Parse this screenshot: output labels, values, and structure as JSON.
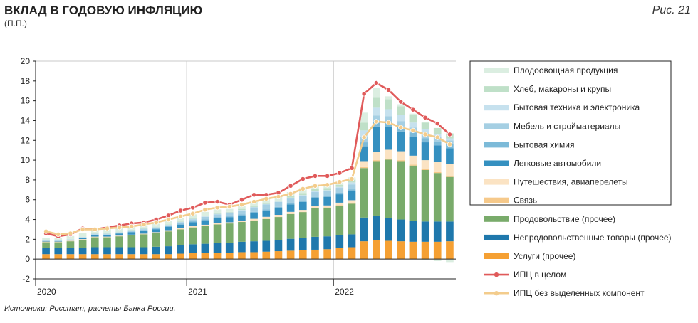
{
  "header": {
    "title": "ВКЛАД В ГОДОВУЮ ИНФЛЯЦИЮ",
    "units": "(П.П.)",
    "figure": "Рис. 21"
  },
  "source": "Источники: Росстат, расчеты Банка России.",
  "chart_data": {
    "type": "bar",
    "stacked": true,
    "ylim": [
      -2,
      20
    ],
    "yticks": [
      -2,
      0,
      2,
      4,
      6,
      8,
      10,
      12,
      14,
      16,
      18,
      20
    ],
    "xtick_labels": [
      "2020",
      "2021",
      "2022"
    ],
    "xtick_positions": [
      0,
      12,
      24
    ],
    "grid": "vertical at year boundaries",
    "legend_position": "right",
    "n_months": 34,
    "series": [
      {
        "name": "Услуги (прочее)",
        "color": "#f5a033",
        "values": [
          0.5,
          0.5,
          0.5,
          0.5,
          0.5,
          0.5,
          0.5,
          0.5,
          0.5,
          0.5,
          0.5,
          0.55,
          0.6,
          0.6,
          0.6,
          0.6,
          0.7,
          0.7,
          0.75,
          0.8,
          0.85,
          0.9,
          0.95,
          1.0,
          1.1,
          1.2,
          1.8,
          1.9,
          1.85,
          1.8,
          1.75,
          1.75,
          1.75,
          1.8
        ]
      },
      {
        "name": "Непродовольственные товары (прочее)",
        "color": "#1f78ac",
        "values": [
          0.6,
          0.6,
          0.6,
          0.65,
          0.7,
          0.7,
          0.7,
          0.7,
          0.7,
          0.75,
          0.8,
          0.85,
          0.9,
          0.95,
          1.0,
          1.0,
          1.05,
          1.1,
          1.1,
          1.15,
          1.2,
          1.25,
          1.3,
          1.3,
          1.3,
          1.3,
          2.4,
          2.5,
          2.3,
          2.2,
          2.1,
          2.05,
          2.05,
          2.0
        ]
      },
      {
        "name": "Продовольствие (прочее)",
        "color": "#79ab6b",
        "values": [
          0.6,
          0.6,
          0.7,
          0.8,
          1.0,
          1.0,
          1.1,
          1.2,
          1.3,
          1.4,
          1.5,
          1.6,
          1.7,
          1.8,
          1.9,
          2.0,
          2.0,
          2.1,
          2.2,
          2.3,
          2.5,
          2.6,
          2.9,
          2.9,
          3.0,
          3.1,
          5.0,
          5.5,
          5.9,
          5.9,
          5.6,
          5.2,
          4.9,
          4.5
        ]
      },
      {
        "name": "Связь",
        "color": "#f6c98a",
        "values": [
          0.02,
          0.02,
          0.02,
          0.02,
          0.02,
          0.02,
          0.02,
          0.02,
          0.02,
          0.02,
          0.02,
          0.02,
          0.02,
          0.02,
          0.02,
          0.02,
          0.02,
          0.02,
          0.02,
          0.02,
          0.02,
          0.02,
          0.02,
          0.02,
          0.05,
          0.05,
          0.1,
          0.1,
          0.1,
          0.1,
          0.1,
          0.1,
          0.1,
          0.1
        ]
      },
      {
        "name": "Путешествия, авиаперелеты",
        "color": "#fbe3c3",
        "values": [
          0.05,
          0.05,
          0.05,
          0.05,
          0.05,
          0.05,
          0.05,
          0.05,
          0.05,
          0.05,
          0.1,
          0.1,
          0.1,
          0.1,
          0.1,
          0.1,
          0.1,
          0.15,
          0.2,
          0.2,
          0.2,
          0.2,
          0.2,
          0.2,
          0.25,
          0.3,
          0.6,
          0.8,
          0.9,
          0.9,
          0.9,
          0.9,
          1.0,
          1.2
        ]
      },
      {
        "name": "Легковые автомобили",
        "color": "#3590c0",
        "values": [
          0.05,
          0.05,
          0.05,
          0.1,
          0.15,
          0.15,
          0.2,
          0.25,
          0.3,
          0.3,
          0.35,
          0.35,
          0.4,
          0.45,
          0.5,
          0.5,
          0.55,
          0.6,
          0.65,
          0.7,
          0.75,
          0.8,
          0.8,
          0.85,
          0.85,
          0.9,
          1.5,
          2.6,
          2.3,
          2.0,
          1.9,
          1.8,
          1.7,
          1.6
        ]
      },
      {
        "name": "Бытовая химия",
        "color": "#7cbad8",
        "values": [
          0.02,
          0.02,
          0.02,
          0.02,
          0.05,
          0.05,
          0.05,
          0.05,
          0.05,
          0.05,
          0.05,
          0.1,
          0.1,
          0.1,
          0.1,
          0.1,
          0.1,
          0.1,
          0.1,
          0.1,
          0.1,
          0.1,
          0.1,
          0.1,
          0.15,
          0.2,
          0.4,
          0.5,
          0.5,
          0.5,
          0.45,
          0.4,
          0.4,
          0.4
        ]
      },
      {
        "name": "Мебель и стройматериалы",
        "color": "#a5cfe3",
        "values": [
          0.02,
          0.02,
          0.02,
          0.05,
          0.05,
          0.05,
          0.05,
          0.1,
          0.1,
          0.1,
          0.1,
          0.15,
          0.2,
          0.25,
          0.3,
          0.35,
          0.4,
          0.45,
          0.5,
          0.5,
          0.5,
          0.5,
          0.5,
          0.5,
          0.5,
          0.5,
          0.6,
          0.6,
          0.6,
          0.55,
          0.5,
          0.5,
          0.45,
          0.4
        ]
      },
      {
        "name": "Бытовая техника и электроника",
        "color": "#c6e1ee",
        "values": [
          0.02,
          0.02,
          0.05,
          0.05,
          0.05,
          0.05,
          0.05,
          0.05,
          0.05,
          0.05,
          0.05,
          0.05,
          0.05,
          0.05,
          0.05,
          0.05,
          0.05,
          0.05,
          0.05,
          0.05,
          0.1,
          0.1,
          0.1,
          0.1,
          0.1,
          0.2,
          0.6,
          0.8,
          0.7,
          0.6,
          0.5,
          0.4,
          0.3,
          0.2
        ]
      },
      {
        "name": "Хлеб, макароны и крупы",
        "color": "#bfe0c8",
        "values": [
          0.02,
          0.02,
          0.02,
          0.02,
          0.05,
          0.05,
          0.05,
          0.05,
          0.05,
          0.05,
          0.05,
          0.05,
          0.05,
          0.05,
          0.05,
          0.05,
          0.1,
          0.1,
          0.1,
          0.1,
          0.15,
          0.2,
          0.2,
          0.2,
          0.2,
          0.3,
          0.8,
          1.0,
          1.0,
          0.9,
          0.8,
          0.7,
          0.6,
          0.5
        ]
      },
      {
        "name": "Плодоовощная продукция",
        "color": "#dbeee1",
        "values": [
          0.2,
          0.2,
          0.3,
          0.4,
          0.4,
          0.4,
          0.5,
          0.4,
          0.3,
          0.3,
          0.3,
          0.3,
          0.4,
          0.4,
          0.4,
          0.3,
          0.3,
          0.4,
          0.4,
          0.4,
          0.4,
          0.5,
          0.4,
          0.3,
          0.2,
          0.2,
          1.0,
          1.0,
          0.3,
          0.2,
          0.1,
          -0.1,
          -0.2,
          -0.3
        ]
      }
    ],
    "lines": [
      {
        "name": "ИПЦ в целом",
        "color": "#e05a5a",
        "values": [
          2.6,
          2.3,
          2.5,
          3.1,
          3.0,
          3.2,
          3.4,
          3.6,
          3.7,
          4.0,
          4.4,
          4.9,
          5.2,
          5.7,
          5.8,
          5.5,
          6.0,
          6.5,
          6.5,
          6.7,
          7.4,
          8.1,
          8.4,
          8.4,
          8.7,
          9.2,
          16.7,
          17.8,
          17.1,
          15.9,
          15.1,
          14.3,
          13.7,
          12.6
        ]
      },
      {
        "name": "ИПЦ без выделенных компонент",
        "color": "#f3cc8c",
        "values": [
          2.8,
          2.5,
          2.6,
          3.0,
          3.0,
          3.1,
          3.2,
          3.3,
          3.5,
          3.7,
          4.0,
          4.3,
          4.6,
          5.0,
          5.2,
          5.3,
          5.5,
          5.8,
          6.1,
          6.3,
          6.6,
          7.1,
          7.4,
          7.5,
          7.8,
          8.1,
          12.3,
          13.9,
          13.8,
          13.3,
          13.0,
          12.6,
          12.3,
          11.6
        ]
      }
    ]
  }
}
